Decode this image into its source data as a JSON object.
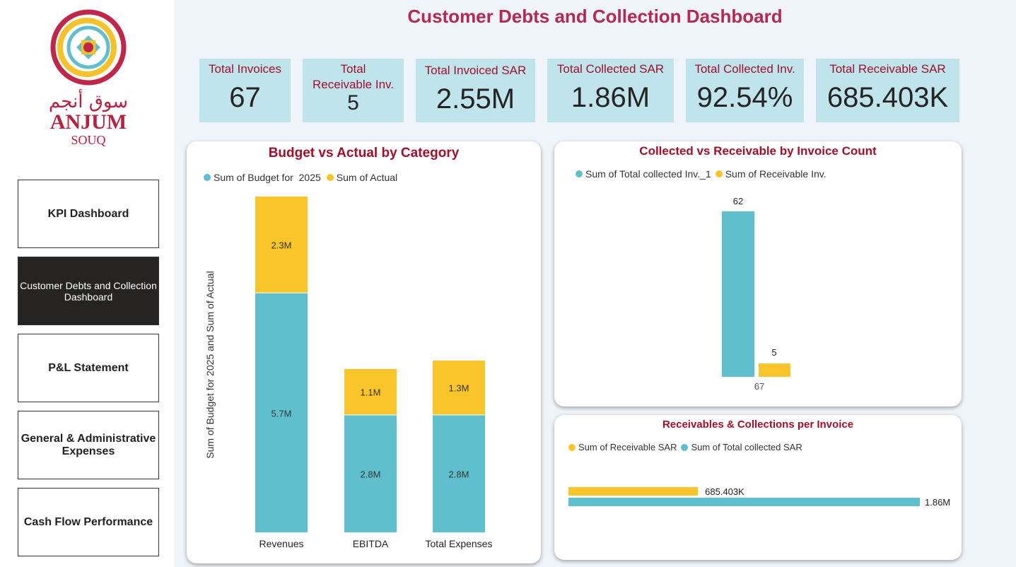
{
  "logo": {
    "arabic": "سوق أنجم",
    "name": "ANJUM",
    "sub": "SOUQ"
  },
  "title": "Customer Debts and Collection Dashboard",
  "nav": [
    {
      "label": "KPI Dashboard"
    },
    {
      "label": "Customer Debts and Collection Dashboard"
    },
    {
      "label": "P&L Statement"
    },
    {
      "label": "General & Administrative Expenses"
    },
    {
      "label": "Cash Flow Performance"
    }
  ],
  "kpis": [
    {
      "label": "Total Invoices",
      "value": "67"
    },
    {
      "label": "Total Receivable Inv.",
      "value": "5"
    },
    {
      "label": "Total Invoiced SAR",
      "value": "2.55M"
    },
    {
      "label": "Total Collected SAR",
      "value": "1.86M"
    },
    {
      "label": "Total Collected Inv.",
      "value": "92.54%"
    },
    {
      "label": "Total Receivable SAR",
      "value": "685.403K"
    }
  ],
  "colors": {
    "teal": "#5fbfcc",
    "yellow": "#f9c52a",
    "title": "#b5294e",
    "label": "#a0102a"
  },
  "chart_data": [
    {
      "type": "bar",
      "stacked": true,
      "title": "Budget vs Actual by Category",
      "ylabel": "Sum of Budget for 2025 and Sum of Actual",
      "xlabel": "",
      "categories": [
        "Revenues",
        "EBITDA",
        "Total Expenses"
      ],
      "series": [
        {
          "name": "Sum of Budget for  2025",
          "values": [
            5.7,
            2.8,
            2.8
          ],
          "labels": [
            "5.7M",
            "2.8M",
            "2.8M"
          ]
        },
        {
          "name": "Sum of Actual",
          "values": [
            2.3,
            1.1,
            1.3
          ],
          "labels": [
            "2.3M",
            "1.1M",
            "1.3M"
          ]
        }
      ],
      "unit": "M",
      "legend": "top-left"
    },
    {
      "type": "bar",
      "title": "Collected vs Receivable by Invoice Count",
      "categories": [
        "67"
      ],
      "series": [
        {
          "name": "Sum of Total collected Inv._1",
          "values": [
            62
          ]
        },
        {
          "name": "Sum of Receivable Inv.",
          "values": [
            5
          ]
        }
      ],
      "legend": "top-left"
    },
    {
      "type": "bar",
      "orientation": "horizontal",
      "title": "Receivables & Collections per Invoice",
      "series": [
        {
          "name": "Sum of Receivable SAR",
          "values": [
            685403
          ],
          "label": "685.403K"
        },
        {
          "name": "Sum of Total collected SAR",
          "values": [
            1860000
          ],
          "label": "1.86M"
        }
      ],
      "legend": "top-left"
    }
  ]
}
